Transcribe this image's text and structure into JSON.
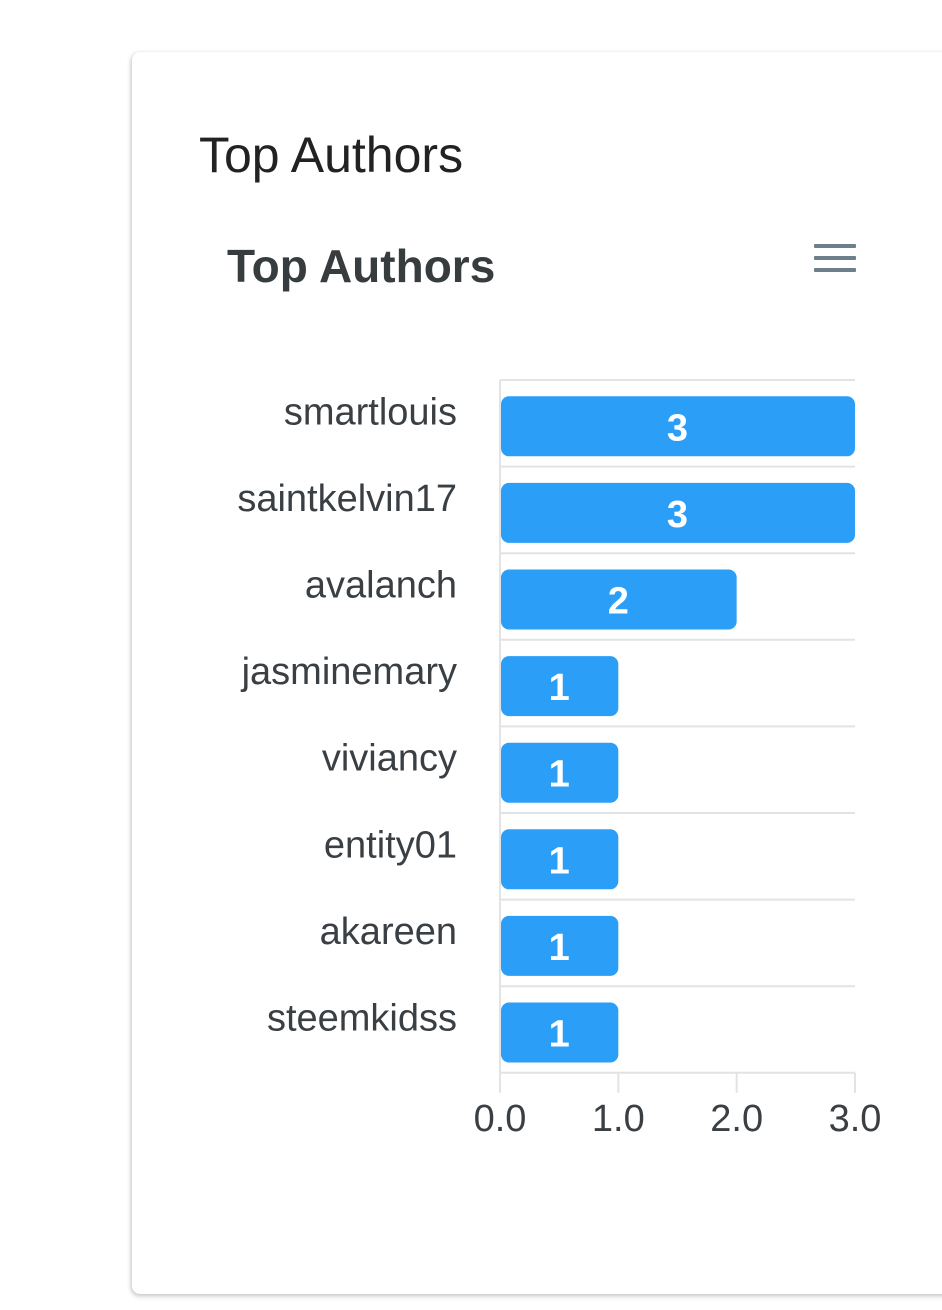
{
  "card": {
    "title": "Top Authors"
  },
  "toolbar": {
    "menu_icon": "hamburger-menu-icon"
  },
  "colors": {
    "bar": "#2b9ff8",
    "grid": "#e3e3e3",
    "text": "#3a3f44",
    "title": "#373d3f"
  },
  "chart_data": {
    "type": "bar",
    "orientation": "horizontal",
    "title": "Top Authors",
    "categories": [
      "smartlouis",
      "saintkelvin17",
      "avalanch",
      "jasminemary",
      "viviancy",
      "entity01",
      "akareen",
      "steemkidss"
    ],
    "values": [
      3,
      3,
      2,
      1,
      1,
      1,
      1,
      1
    ],
    "data_labels": [
      "3",
      "3",
      "2",
      "1",
      "1",
      "1",
      "1",
      "1"
    ],
    "xticks": [
      "0.0",
      "1.0",
      "2.0",
      "3.0"
    ],
    "xlim": [
      0,
      3
    ],
    "xlabel": "",
    "ylabel": "",
    "grid": true
  }
}
